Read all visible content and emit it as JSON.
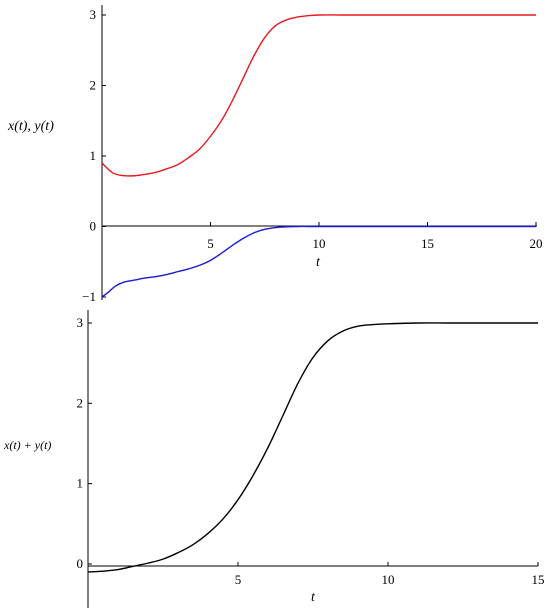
{
  "chart_data": [
    {
      "type": "line",
      "xlabel": "t",
      "ylabel": "x(t), y(t)",
      "xlim": [
        0,
        20
      ],
      "ylim": [
        -1,
        3
      ],
      "xticks": [
        "5",
        "10",
        "15",
        "20"
      ],
      "yticks": [
        "-1",
        "0",
        "1",
        "2",
        "3"
      ],
      "grid": false,
      "series": [
        {
          "color": "#e8191d",
          "x": [
            0,
            0.5,
            1,
            1.5,
            2,
            2.5,
            3,
            3.5,
            4,
            4.5,
            5,
            5.5,
            6,
            6.5,
            7,
            7.5,
            8,
            8.5,
            9,
            9.5,
            10,
            11,
            12,
            14,
            16,
            18,
            20
          ],
          "y": [
            0.9,
            0.76,
            0.72,
            0.72,
            0.74,
            0.77,
            0.82,
            0.88,
            0.98,
            1.1,
            1.28,
            1.5,
            1.78,
            2.1,
            2.42,
            2.68,
            2.85,
            2.93,
            2.97,
            2.99,
            3.0,
            3.0,
            3.0,
            3.0,
            3.0,
            3.0,
            3.0
          ]
        },
        {
          "color": "#1a1adb",
          "x": [
            0,
            0.3,
            0.6,
            1,
            1.5,
            2,
            2.5,
            3,
            3.5,
            4,
            4.5,
            5,
            5.5,
            6,
            6.5,
            7,
            7.5,
            8,
            8.5,
            9,
            9.5,
            10,
            12,
            14,
            16,
            18,
            20
          ],
          "y": [
            -1.0,
            -0.93,
            -0.85,
            -0.79,
            -0.76,
            -0.73,
            -0.71,
            -0.68,
            -0.64,
            -0.6,
            -0.55,
            -0.48,
            -0.38,
            -0.27,
            -0.17,
            -0.09,
            -0.04,
            -0.015,
            -0.005,
            0.0,
            0.0,
            0.0,
            0.0,
            0.0,
            0.0,
            0.0,
            0.0
          ]
        }
      ]
    },
    {
      "type": "line",
      "xlabel": "t",
      "ylabel": "x(t) + y(t)",
      "xlim": [
        0,
        15
      ],
      "ylim": [
        -0.2,
        3
      ],
      "xticks": [
        "5",
        "10",
        "15"
      ],
      "yticks": [
        "0",
        "1",
        "2",
        "3"
      ],
      "grid": false,
      "series": [
        {
          "color": "#000000",
          "x": [
            0,
            0.5,
            1,
            1.5,
            2,
            2.5,
            3,
            3.5,
            4,
            4.5,
            5,
            5.5,
            6,
            6.5,
            7,
            7.5,
            8,
            8.5,
            9,
            9.5,
            10,
            11,
            12,
            13,
            14,
            15
          ],
          "y": [
            -0.1,
            -0.09,
            -0.07,
            -0.03,
            0.01,
            0.06,
            0.14,
            0.24,
            0.38,
            0.56,
            0.8,
            1.1,
            1.45,
            1.85,
            2.25,
            2.57,
            2.78,
            2.9,
            2.96,
            2.98,
            2.99,
            3.0,
            3.0,
            3.0,
            3.0,
            3.0
          ]
        }
      ]
    }
  ]
}
